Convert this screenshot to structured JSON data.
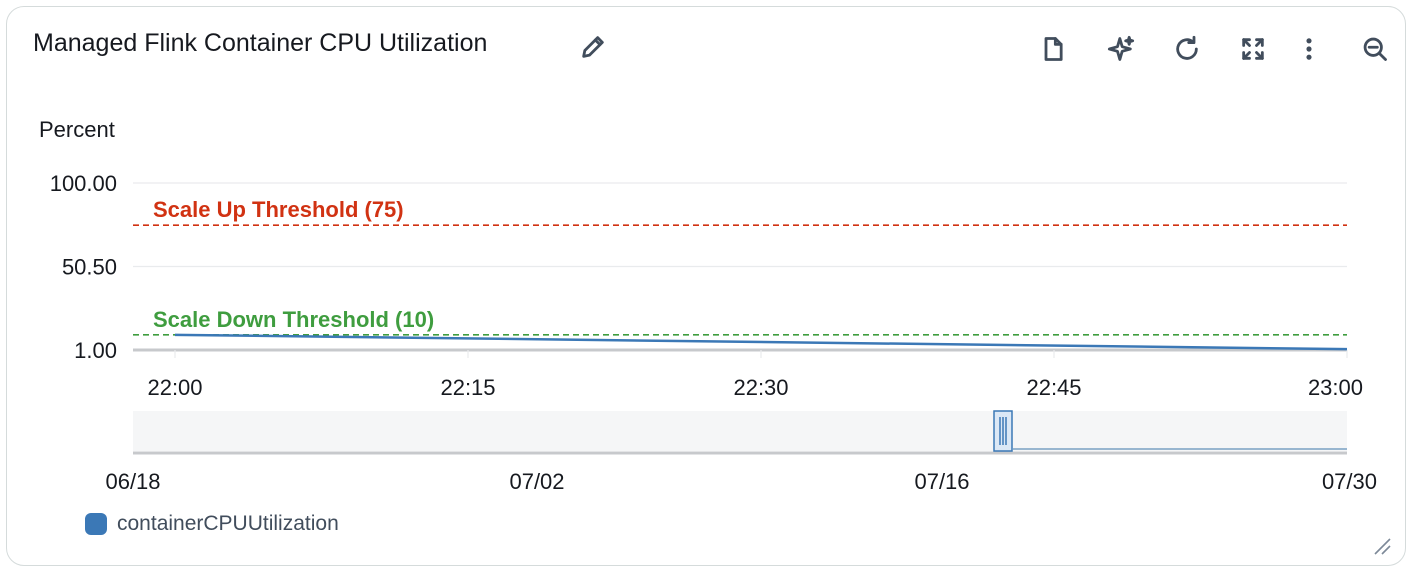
{
  "widget": {
    "title": "Managed Flink Container CPU Utilization"
  },
  "toolbar": {
    "icons": [
      "edit-icon",
      "document-icon",
      "sparkle-icon",
      "refresh-icon",
      "fullscreen-icon",
      "more-icon",
      "zoom-out-icon"
    ]
  },
  "chart_data": {
    "type": "line",
    "ylabel": "Percent",
    "ylim": [
      1.0,
      100.0
    ],
    "yticks": [
      "100.00",
      "50.50",
      "1.00"
    ],
    "ytick_values": [
      100.0,
      50.5,
      1.0
    ],
    "xticks": [
      "22:00",
      "22:15",
      "22:30",
      "22:45",
      "23:00"
    ],
    "xtick_minutes": [
      0,
      15,
      30,
      45,
      60
    ],
    "series": [
      {
        "name": "containerCPUUtilization",
        "color": "#3b78b6",
        "x_minutes": [
          0,
          60
        ],
        "values": [
          10.0,
          1.5
        ]
      }
    ],
    "thresholds": [
      {
        "label": "Scale Up Threshold (75)",
        "value": 75,
        "color": "#d13212"
      },
      {
        "label": "Scale Down Threshold (10)",
        "value": 10,
        "color": "#3f9d3f"
      }
    ],
    "navigator": {
      "xticks": [
        "06/18",
        "07/02",
        "07/16",
        "07/30"
      ]
    },
    "legend": [
      "containerCPUUtilization"
    ]
  }
}
